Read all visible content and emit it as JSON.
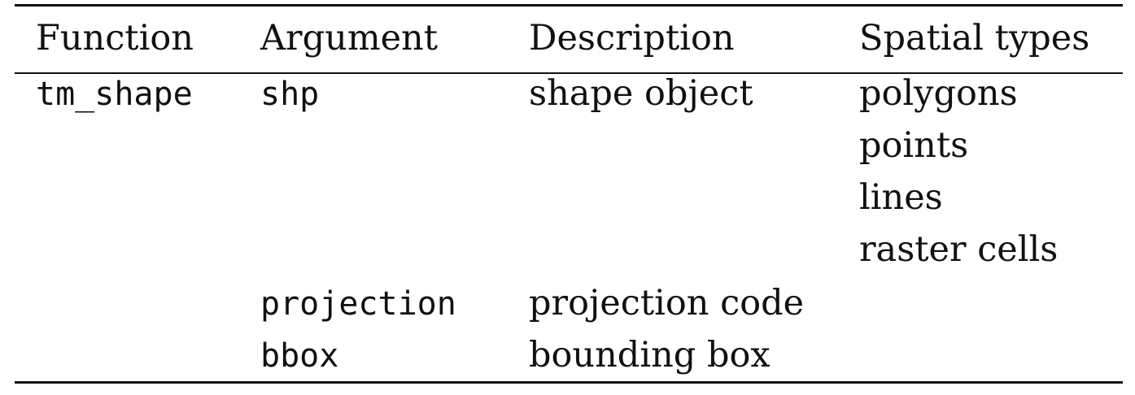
{
  "table": {
    "headers": [
      "Function",
      "Argument",
      "Description",
      "Spatial types"
    ],
    "function": "tm_shape",
    "arguments": [
      {
        "name": "shp",
        "description": "shape object",
        "spatial_types": [
          "polygons",
          "points",
          "lines",
          "raster cells"
        ]
      },
      {
        "name": "projection",
        "description": "projection code",
        "spatial_types": []
      },
      {
        "name": "bbox",
        "description": "bounding box",
        "spatial_types": []
      }
    ]
  }
}
